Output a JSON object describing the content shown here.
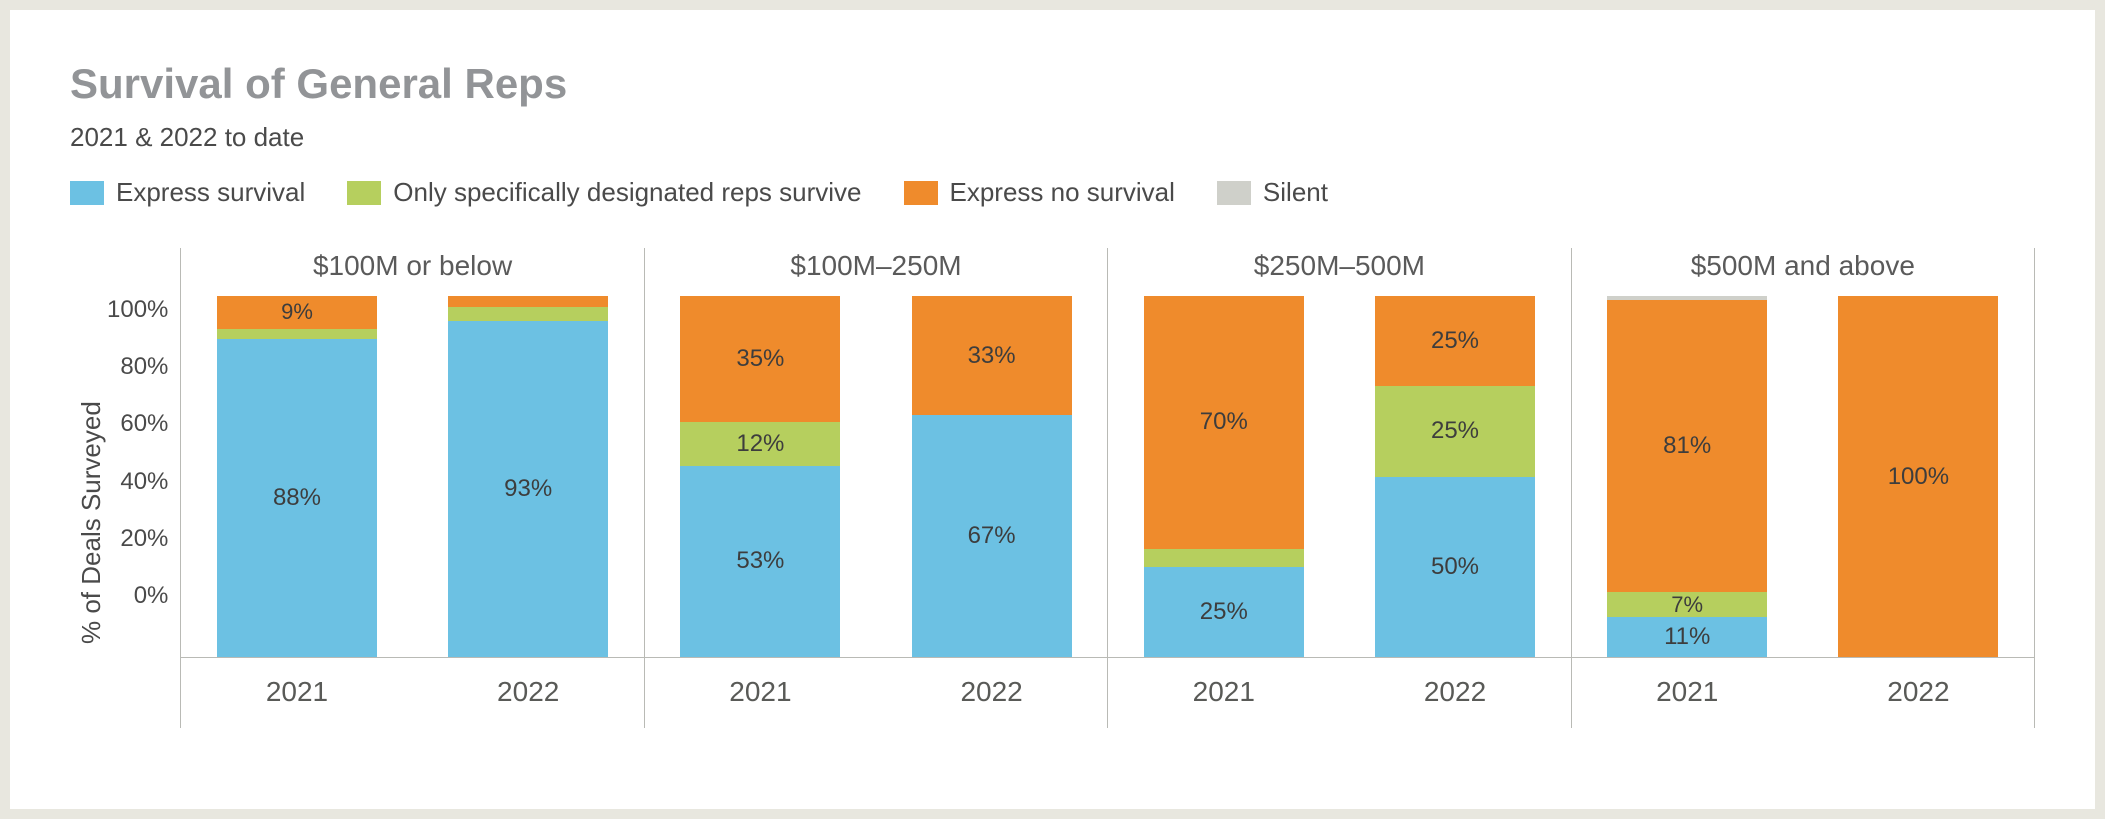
{
  "title": "Survival of General Reps",
  "subtitle": "2021 & 2022 to date",
  "y_axis_label": "% of Deals Surveyed",
  "y_ticks": [
    "100%",
    "80%",
    "60%",
    "40%",
    "20%",
    "0%"
  ],
  "ylim": [
    0,
    100
  ],
  "background_color": "#ffffff",
  "page_background": "#e8e7df",
  "axis_color": "#b9bab5",
  "title_color": "#929497",
  "text_color": "#4a4a4a",
  "label_min_pct_to_show": 4,
  "series": [
    {
      "key": "express_survival",
      "label": "Express survival",
      "color": "#6cc1e3"
    },
    {
      "key": "designated",
      "label": "Only specifically designated reps survive",
      "color": "#b6cf5e"
    },
    {
      "key": "express_no_survival",
      "label": "Express no survival",
      "color": "#ef8b2c"
    },
    {
      "key": "silent",
      "label": "Silent",
      "color": "#cfd0ca"
    }
  ],
  "panels": [
    {
      "title": "$100M or below",
      "width_weight": 1,
      "bars": [
        {
          "xlabel": "2021",
          "values": {
            "express_survival": 88,
            "designated": 3,
            "express_no_survival": 9,
            "silent": 0
          },
          "show_labels": {
            "express_survival": "88%",
            "express_no_survival": "9%"
          }
        },
        {
          "xlabel": "2022",
          "values": {
            "express_survival": 93,
            "designated": 4,
            "express_no_survival": 3,
            "silent": 0
          },
          "show_labels": {
            "express_survival": "93%"
          }
        }
      ]
    },
    {
      "title": "$100M–250M",
      "width_weight": 1,
      "bars": [
        {
          "xlabel": "2021",
          "values": {
            "express_survival": 53,
            "designated": 12,
            "express_no_survival": 35,
            "silent": 0
          },
          "show_labels": {
            "express_survival": "53%",
            "designated": "12%",
            "express_no_survival": "35%"
          }
        },
        {
          "xlabel": "2022",
          "values": {
            "express_survival": 67,
            "designated": 0,
            "express_no_survival": 33,
            "silent": 0
          },
          "show_labels": {
            "express_survival": "67%",
            "express_no_survival": "33%"
          }
        }
      ]
    },
    {
      "title": "$250M–500M",
      "width_weight": 1,
      "bars": [
        {
          "xlabel": "2021",
          "values": {
            "express_survival": 25,
            "designated": 5,
            "express_no_survival": 70,
            "silent": 0
          },
          "show_labels": {
            "express_survival": "25%",
            "express_no_survival": "70%"
          }
        },
        {
          "xlabel": "2022",
          "values": {
            "express_survival": 50,
            "designated": 25,
            "express_no_survival": 25,
            "silent": 0
          },
          "show_labels": {
            "express_survival": "50%",
            "designated": "25%",
            "express_no_survival": "25%"
          }
        }
      ]
    },
    {
      "title": "$500M and above",
      "width_weight": 1,
      "bars": [
        {
          "xlabel": "2021",
          "values": {
            "express_survival": 11,
            "designated": 7,
            "express_no_survival": 81,
            "silent": 1
          },
          "show_labels": {
            "express_survival": "11%",
            "designated": "7%",
            "express_no_survival": "81%"
          }
        },
        {
          "xlabel": "2022",
          "values": {
            "express_survival": 0,
            "designated": 0,
            "express_no_survival": 100,
            "silent": 0
          },
          "show_labels": {
            "express_no_survival": "100%"
          }
        }
      ]
    }
  ]
}
